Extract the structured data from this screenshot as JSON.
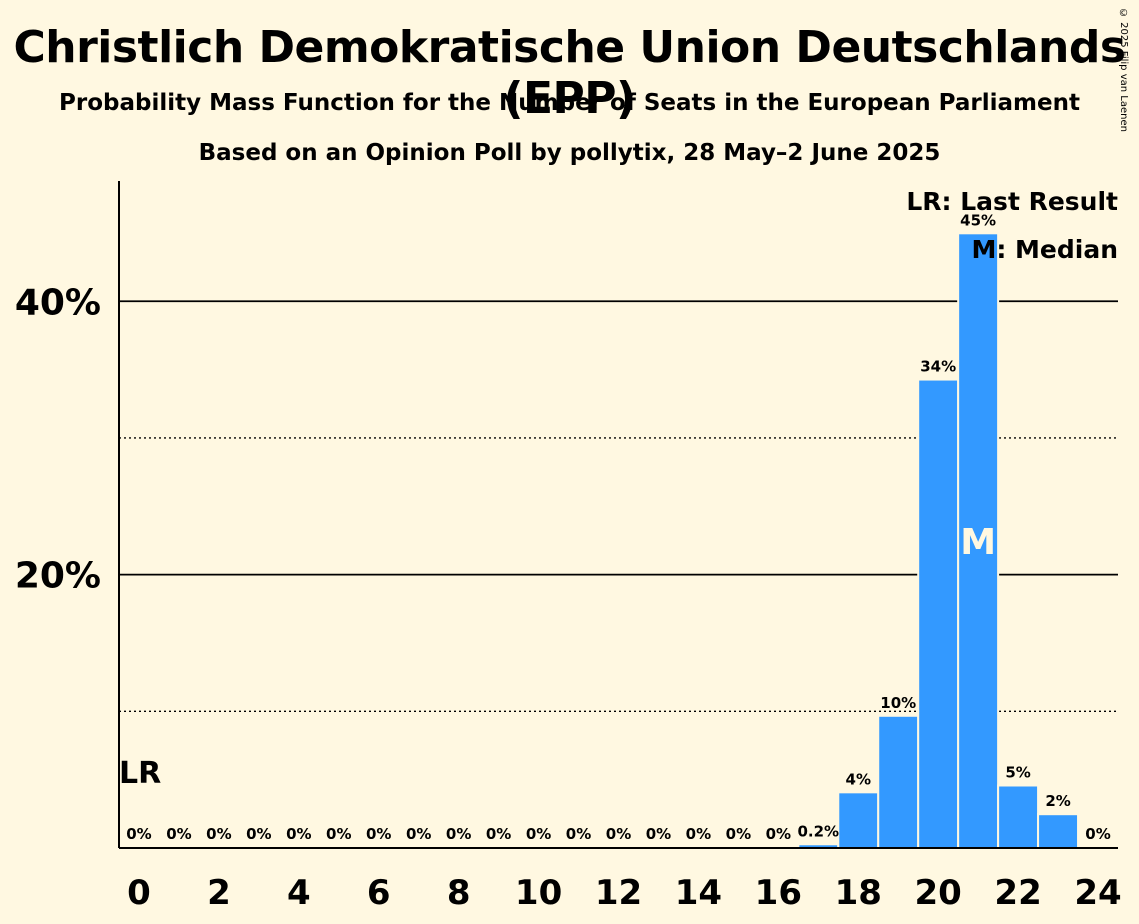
{
  "title": "Christlich Demokratische Union Deutschlands (EPP)",
  "subtitle1": "Probability Mass Function for the Number of Seats in the European Parliament",
  "subtitle2": "Based on an Opinion Poll by pollytix, 28 May–2 June 2025",
  "copyright": "© 2025 Filip van Laenen",
  "legend": {
    "last_result": "LR: Last Result",
    "median": "M: Median"
  },
  "colors": {
    "bar": "#3399ff",
    "background": "#fff8e1"
  },
  "chart_data": {
    "type": "bar",
    "x": [
      0,
      1,
      2,
      3,
      4,
      5,
      6,
      7,
      8,
      9,
      10,
      11,
      12,
      13,
      14,
      15,
      16,
      17,
      18,
      19,
      20,
      21,
      22,
      23,
      24
    ],
    "values": [
      0,
      0,
      0,
      0,
      0,
      0,
      0,
      0,
      0,
      0,
      0,
      0,
      0,
      0,
      0,
      0,
      0,
      0.2,
      4,
      10,
      34,
      45,
      5,
      2,
      0
    ],
    "data_labels": [
      "0%",
      "0%",
      "0%",
      "0%",
      "0%",
      "0%",
      "0%",
      "0%",
      "0%",
      "0%",
      "0%",
      "0%",
      "0%",
      "0%",
      "0%",
      "0%",
      "0%",
      "0.2%",
      "4%",
      "10%",
      "34%",
      "45%",
      "5%",
      "2%",
      "0%"
    ],
    "exact_values": [
      0,
      0,
      0,
      0,
      0,
      0,
      0,
      0,
      0,
      0,
      0,
      0,
      0,
      0,
      0,
      0,
      0,
      0.2,
      4.0,
      9.6,
      34.2,
      44.9,
      4.5,
      2.4,
      0
    ],
    "x_ticks": [
      0,
      2,
      4,
      6,
      8,
      10,
      12,
      14,
      16,
      18,
      20,
      22,
      24
    ],
    "x_tick_labels": [
      "0",
      "2",
      "4",
      "6",
      "8",
      "10",
      "12",
      "14",
      "16",
      "18",
      "20",
      "22",
      "24"
    ],
    "y_ticks": [
      20,
      40
    ],
    "y_tick_labels": [
      "20%",
      "40%"
    ],
    "y_minor_ticks": [
      10,
      30
    ],
    "ylim": [
      0,
      48.8
    ],
    "xlim": [
      -0.5,
      24.5
    ],
    "last_result_seat": 0,
    "last_result_label": "LR",
    "median_seat": 21,
    "median_label": "M",
    "xlabel": "",
    "ylabel": ""
  }
}
